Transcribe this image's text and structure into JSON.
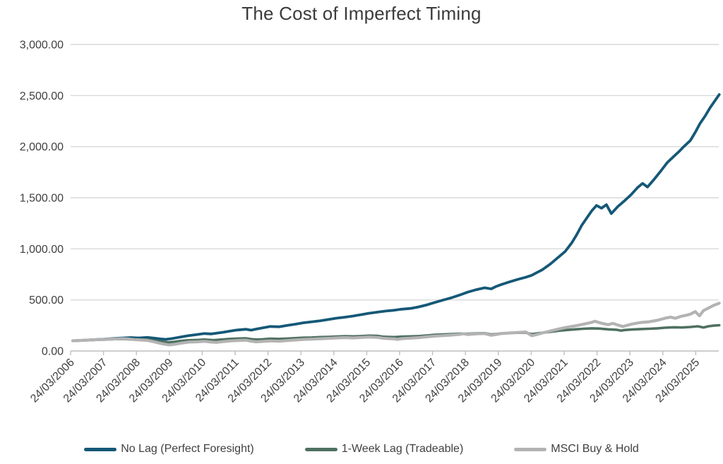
{
  "page": {
    "background": "#ffffff"
  },
  "colors": {
    "title_text": "#3b3b3b",
    "axis_text": "#404040",
    "gridline": "#d9d9d9",
    "axis_line": "#bfbfbf"
  },
  "chart_data": {
    "type": "line",
    "title": "The Cost of Imperfect Timing",
    "xlabel": "",
    "ylabel": "",
    "grid": "horizontal",
    "legend_position": "bottom",
    "x_encoding": "decimal years (24/03/2006 = 2006.23)",
    "x_axis": {
      "tick_labels": [
        "24/03/2006",
        "24/03/2007",
        "24/03/2008",
        "24/03/2009",
        "24/03/2010",
        "24/03/2011",
        "24/03/2012",
        "24/03/2013",
        "24/03/2014",
        "24/03/2015",
        "24/03/2016",
        "24/03/2017",
        "24/03/2018",
        "24/03/2019",
        "24/03/2020",
        "24/03/2021",
        "24/03/2022",
        "24/03/2023",
        "24/03/2024",
        "24/03/2025"
      ],
      "tick_values": [
        2006.23,
        2007.23,
        2008.23,
        2009.23,
        2010.23,
        2011.23,
        2012.23,
        2013.23,
        2014.23,
        2015.23,
        2016.23,
        2017.23,
        2018.23,
        2019.23,
        2020.23,
        2021.23,
        2022.23,
        2023.23,
        2024.23,
        2025.23
      ],
      "domain": [
        2006.23,
        2025.95
      ]
    },
    "y_axis": {
      "min": 0,
      "max": 3000,
      "ticks": [
        {
          "value": 0,
          "label": "0.00"
        },
        {
          "value": 500,
          "label": "500.00"
        },
        {
          "value": 1000,
          "label": "1,000.00"
        },
        {
          "value": 1500,
          "label": "1,500.00"
        },
        {
          "value": 2000,
          "label": "2,000.00"
        },
        {
          "value": 2500,
          "label": "2,500.00"
        },
        {
          "value": 3000,
          "label": "3,000.00"
        }
      ]
    },
    "series": [
      {
        "id": "no-lag",
        "name": "No Lag (Perfect Foresight)",
        "color": "#155877",
        "stroke_width": 3.8,
        "x": [
          2006.23,
          2006.4,
          2006.6,
          2006.8,
          2007.0,
          2007.23,
          2007.5,
          2007.75,
          2008.0,
          2008.23,
          2008.5,
          2008.7,
          2008.9,
          2009.05,
          2009.23,
          2009.5,
          2009.75,
          2010.0,
          2010.23,
          2010.45,
          2010.6,
          2010.8,
          2011.0,
          2011.23,
          2011.5,
          2011.65,
          2011.8,
          2012.0,
          2012.23,
          2012.5,
          2012.75,
          2013.0,
          2013.23,
          2013.5,
          2013.75,
          2014.0,
          2014.23,
          2014.5,
          2014.75,
          2015.0,
          2015.23,
          2015.5,
          2015.75,
          2016.0,
          2016.23,
          2016.5,
          2016.75,
          2017.0,
          2017.23,
          2017.5,
          2017.75,
          2018.0,
          2018.23,
          2018.5,
          2018.75,
          2018.95,
          2019.1,
          2019.23,
          2019.5,
          2019.75,
          2020.0,
          2020.18,
          2020.3,
          2020.5,
          2020.75,
          2021.0,
          2021.2,
          2021.4,
          2021.55,
          2021.7,
          2021.85,
          2022.0,
          2022.15,
          2022.3,
          2022.45,
          2022.6,
          2022.8,
          2023.0,
          2023.2,
          2023.4,
          2023.55,
          2023.7,
          2023.9,
          2024.1,
          2024.3,
          2024.5,
          2024.65,
          2024.8,
          2025.0,
          2025.15,
          2025.3,
          2025.45,
          2025.6,
          2025.75,
          2025.88
        ],
        "y": [
          100,
          102,
          106,
          109,
          113,
          117,
          123,
          128,
          131,
          128,
          133,
          126,
          118,
          114,
          121,
          136,
          150,
          161,
          171,
          167,
          175,
          183,
          194,
          205,
          213,
          204,
          214,
          227,
          240,
          237,
          251,
          263,
          276,
          286,
          296,
          308,
          321,
          331,
          342,
          356,
          369,
          381,
          391,
          399,
          409,
          417,
          432,
          452,
          475,
          500,
          522,
          549,
          576,
          601,
          619,
          608,
          632,
          648,
          676,
          700,
          722,
          741,
          762,
          795,
          852,
          921,
          975,
          1060,
          1140,
          1230,
          1300,
          1370,
          1425,
          1398,
          1432,
          1345,
          1415,
          1470,
          1530,
          1600,
          1640,
          1605,
          1680,
          1760,
          1845,
          1905,
          1950,
          2000,
          2060,
          2140,
          2230,
          2300,
          2380,
          2450,
          2510
        ]
      },
      {
        "id": "one-week-lag",
        "name": "1-Week Lag (Tradeable)",
        "color": "#4f7061",
        "stroke_width": 3.6,
        "x": [
          2006.23,
          2006.5,
          2006.75,
          2007.0,
          2007.23,
          2007.5,
          2007.75,
          2008.0,
          2008.23,
          2008.5,
          2008.75,
          2009.0,
          2009.15,
          2009.3,
          2009.5,
          2009.75,
          2010.0,
          2010.23,
          2010.5,
          2010.75,
          2011.0,
          2011.23,
          2011.5,
          2011.65,
          2011.8,
          2012.0,
          2012.23,
          2012.5,
          2012.75,
          2013.0,
          2013.23,
          2013.5,
          2013.75,
          2014.0,
          2014.23,
          2014.5,
          2014.75,
          2015.0,
          2015.23,
          2015.5,
          2015.65,
          2015.8,
          2016.0,
          2016.23,
          2016.5,
          2016.75,
          2017.0,
          2017.23,
          2017.5,
          2017.75,
          2018.0,
          2018.23,
          2018.5,
          2018.75,
          2018.95,
          2019.1,
          2019.23,
          2019.5,
          2019.75,
          2020.0,
          2020.18,
          2020.3,
          2020.5,
          2020.75,
          2021.0,
          2021.23,
          2021.5,
          2021.75,
          2022.0,
          2022.23,
          2022.5,
          2022.75,
          2022.9,
          2023.0,
          2023.23,
          2023.5,
          2023.75,
          2024.0,
          2024.23,
          2024.5,
          2024.75,
          2025.0,
          2025.23,
          2025.4,
          2025.55,
          2025.7,
          2025.88
        ],
        "y": [
          100,
          103,
          106,
          110,
          112,
          116,
          118,
          113,
          112,
          112,
          100,
          90,
          85,
          89,
          98,
          105,
          108,
          112,
          106,
          112,
          118,
          122,
          124,
          116,
          112,
          115,
          120,
          118,
          122,
          126,
          130,
          132,
          136,
          138,
          142,
          145,
          143,
          146,
          150,
          148,
          140,
          138,
          136,
          140,
          143,
          146,
          152,
          158,
          162,
          166,
          170,
          168,
          172,
          174,
          162,
          166,
          172,
          176,
          178,
          180,
          165,
          170,
          178,
          188,
          198,
          205,
          212,
          218,
          222,
          220,
          212,
          208,
          200,
          205,
          210,
          215,
          218,
          222,
          228,
          232,
          230,
          235,
          242,
          230,
          242,
          248,
          252
        ]
      },
      {
        "id": "msci-buy-hold",
        "name": "MSCI Buy & Hold",
        "color": "#b3b3b3",
        "stroke_width": 4.2,
        "x": [
          2006.23,
          2006.5,
          2006.75,
          2007.0,
          2007.23,
          2007.5,
          2007.75,
          2007.9,
          2008.1,
          2008.3,
          2008.5,
          2008.7,
          2008.85,
          2009.0,
          2009.15,
          2009.3,
          2009.5,
          2009.75,
          2010.0,
          2010.23,
          2010.45,
          2010.6,
          2010.8,
          2011.0,
          2011.23,
          2011.5,
          2011.65,
          2011.8,
          2012.0,
          2012.23,
          2012.5,
          2012.75,
          2013.0,
          2013.23,
          2013.5,
          2013.75,
          2014.0,
          2014.23,
          2014.5,
          2014.75,
          2015.0,
          2015.23,
          2015.5,
          2015.65,
          2015.8,
          2016.0,
          2016.1,
          2016.23,
          2016.5,
          2016.75,
          2017.0,
          2017.23,
          2017.5,
          2017.75,
          2018.0,
          2018.1,
          2018.23,
          2018.5,
          2018.75,
          2018.95,
          2019.1,
          2019.23,
          2019.5,
          2019.75,
          2020.0,
          2020.18,
          2020.3,
          2020.5,
          2020.75,
          2021.0,
          2021.23,
          2021.5,
          2021.75,
          2022.0,
          2022.1,
          2022.3,
          2022.5,
          2022.65,
          2022.8,
          2022.95,
          2023.1,
          2023.23,
          2023.5,
          2023.75,
          2024.0,
          2024.23,
          2024.4,
          2024.55,
          2024.7,
          2024.85,
          2025.0,
          2025.15,
          2025.28,
          2025.4,
          2025.55,
          2025.7,
          2025.88
        ],
        "y": [
          100,
          104,
          108,
          112,
          114,
          118,
          121,
          118,
          112,
          108,
          104,
          90,
          78,
          68,
          60,
          64,
          76,
          87,
          90,
          95,
          87,
          84,
          92,
          98,
          103,
          106,
          96,
          90,
          94,
          99,
          96,
          102,
          108,
          113,
          116,
          120,
          124,
          128,
          131,
          128,
          133,
          137,
          133,
          126,
          122,
          119,
          114,
          121,
          126,
          131,
          139,
          146,
          151,
          156,
          163,
          169,
          162,
          168,
          171,
          154,
          161,
          170,
          176,
          181,
          186,
          150,
          158,
          176,
          196,
          216,
          231,
          246,
          262,
          280,
          291,
          272,
          258,
          270,
          254,
          240,
          253,
          264,
          279,
          286,
          301,
          321,
          331,
          320,
          338,
          348,
          360,
          385,
          345,
          395,
          420,
          445,
          468
        ]
      }
    ]
  }
}
